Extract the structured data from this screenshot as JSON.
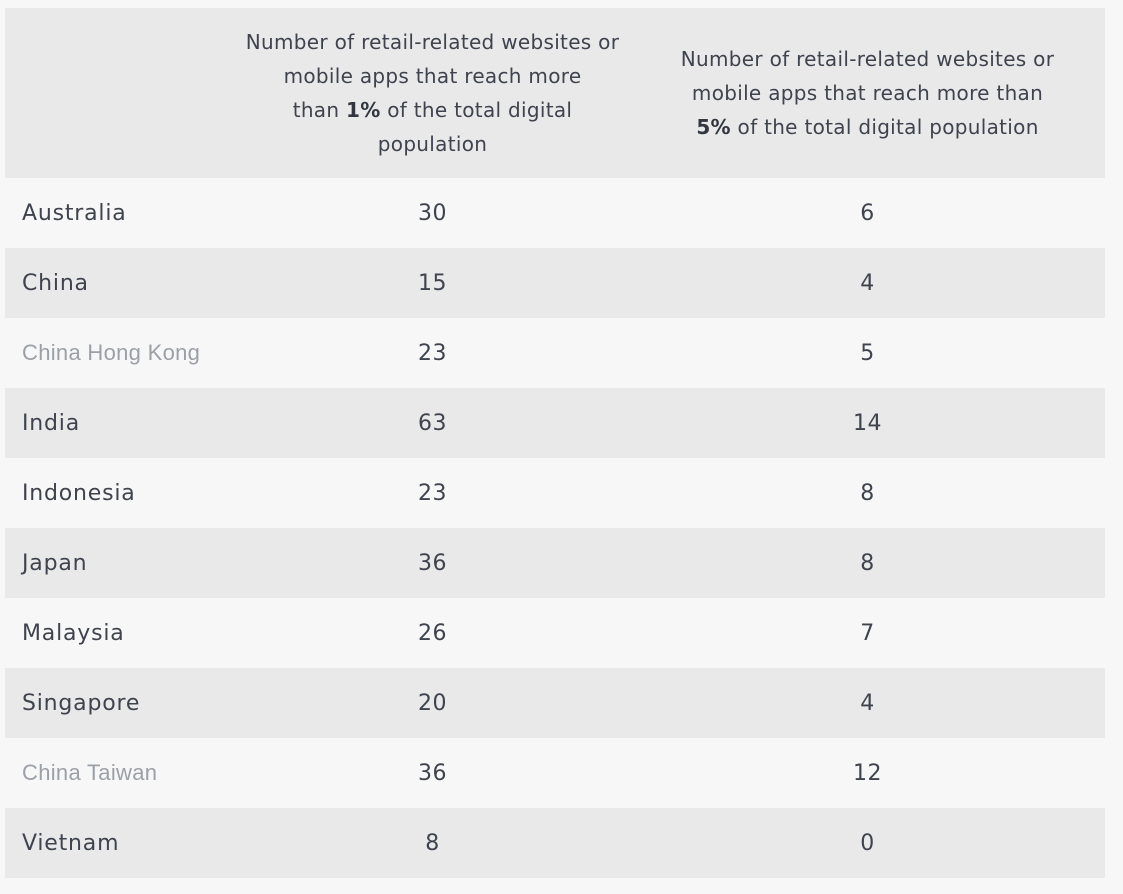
{
  "page": {
    "background_color": "#f7f7f7",
    "band_color": "#e9e9ea",
    "text_color": "#3f434d",
    "muted_text_color": "#9ba0a7"
  },
  "header": {
    "col1": {
      "l1": "Number of retail-related websites or",
      "l2": "mobile apps that reach more",
      "l3_pre": "than ",
      "l3_bold": "1%",
      "l3_post": " of the total digital",
      "l4": "population"
    },
    "col2": {
      "l1": "Number of retail-related websites or",
      "l2": "mobile apps that reach more than",
      "l3_bold": "5%",
      "l3_post": " of the total digital population"
    }
  },
  "table": {
    "rows": [
      {
        "country": "Australia",
        "pct1": "30",
        "pct5": "6",
        "muted": false
      },
      {
        "country": "China",
        "pct1": "15",
        "pct5": "4",
        "muted": false
      },
      {
        "country": "China Hong Kong",
        "pct1": "23",
        "pct5": "5",
        "muted": true
      },
      {
        "country": "India",
        "pct1": "63",
        "pct5": "14",
        "muted": false
      },
      {
        "country": "Indonesia",
        "pct1": "23",
        "pct5": "8",
        "muted": false
      },
      {
        "country": "Japan",
        "pct1": "36",
        "pct5": "8",
        "muted": false
      },
      {
        "country": "Malaysia",
        "pct1": "26",
        "pct5": "7",
        "muted": false
      },
      {
        "country": "Singapore",
        "pct1": "20",
        "pct5": "4",
        "muted": false
      },
      {
        "country": "China Taiwan",
        "pct1": "36",
        "pct5": "12",
        "muted": true
      },
      {
        "country": "Vietnam",
        "pct1": "8",
        "pct5": "0",
        "muted": false
      }
    ]
  },
  "chart_data": {
    "type": "table",
    "columns": [
      "",
      "Number of retail-related websites or mobile apps that reach more than 1% of the total digital population",
      "Number of retail-related websites or mobile apps that reach more than 5% of the total digital population"
    ],
    "rows": [
      [
        "Australia",
        30,
        6
      ],
      [
        "China",
        15,
        4
      ],
      [
        "China Hong Kong",
        23,
        5
      ],
      [
        "India",
        63,
        14
      ],
      [
        "Indonesia",
        23,
        8
      ],
      [
        "Japan",
        36,
        8
      ],
      [
        "Malaysia",
        26,
        7
      ],
      [
        "Singapore",
        20,
        4
      ],
      [
        "China Taiwan",
        36,
        12
      ],
      [
        "Vietnam",
        8,
        0
      ]
    ]
  }
}
